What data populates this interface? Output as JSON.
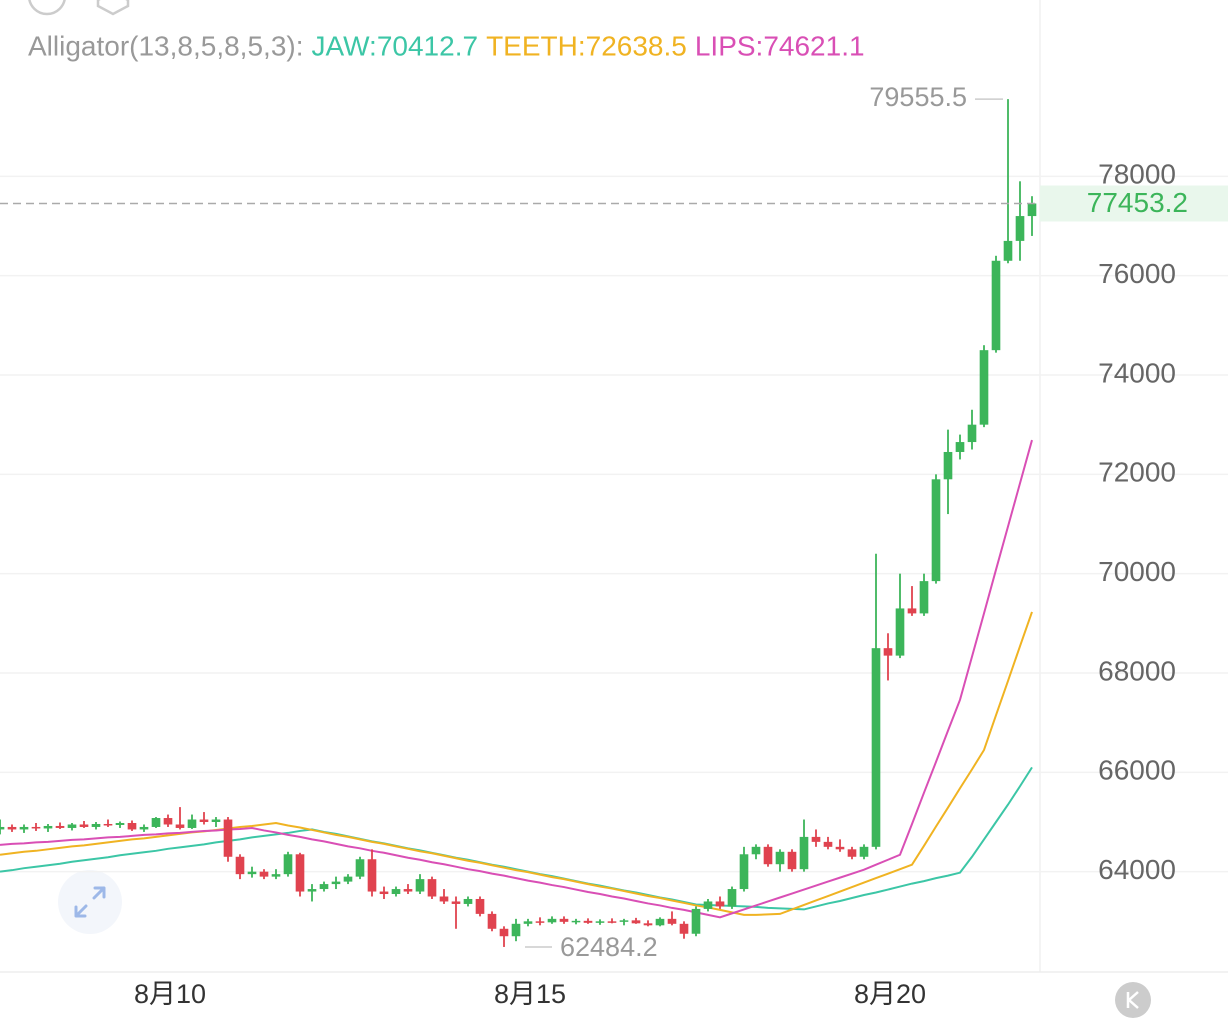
{
  "chart_data": {
    "type": "candlestick",
    "indicator": "Alligator(13,8,5,8,5,3):",
    "categories": [
      null,
      null,
      null,
      null,
      null,
      null,
      null,
      null,
      null,
      null,
      null,
      null,
      null,
      null,
      "8月10",
      null,
      null,
      null,
      null,
      null,
      null,
      null,
      null,
      null,
      null,
      null,
      null,
      null,
      null,
      null,
      null,
      null,
      null,
      null,
      null,
      null,
      null,
      null,
      null,
      null,
      null,
      null,
      null,
      null,
      "8月15",
      null,
      null,
      null,
      null,
      null,
      null,
      null,
      null,
      null,
      null,
      null,
      null,
      null,
      null,
      null,
      null,
      null,
      null,
      null,
      null,
      null,
      null,
      null,
      null,
      null,
      null,
      null,
      null,
      null,
      "8月20",
      null,
      null,
      null,
      null,
      null,
      null,
      null,
      null,
      null,
      null,
      null,
      null
    ],
    "ohlc": [
      [
        64850,
        65050,
        64750,
        64900
      ],
      [
        64900,
        64950,
        64800,
        64850
      ],
      [
        64850,
        64950,
        64780,
        64900
      ],
      [
        64900,
        64980,
        64820,
        64870
      ],
      [
        64870,
        64960,
        64800,
        64920
      ],
      [
        64920,
        64990,
        64860,
        64880
      ],
      [
        64880,
        64980,
        64830,
        64950
      ],
      [
        64950,
        65020,
        64880,
        64900
      ],
      [
        64900,
        65000,
        64850,
        64960
      ],
      [
        64960,
        65050,
        64900,
        64940
      ],
      [
        64940,
        65010,
        64880,
        64980
      ],
      [
        64980,
        65030,
        64820,
        64850
      ],
      [
        64850,
        64950,
        64800,
        64900
      ],
      [
        64900,
        65100,
        64880,
        65080
      ],
      [
        65080,
        65150,
        64900,
        64950
      ],
      [
        64950,
        65300,
        64850,
        64880
      ],
      [
        64880,
        65150,
        64860,
        65050
      ],
      [
        65050,
        65200,
        64950,
        65000
      ],
      [
        65000,
        65100,
        64900,
        65050
      ],
      [
        65050,
        65100,
        64200,
        64300
      ],
      [
        64300,
        64350,
        63850,
        63950
      ],
      [
        63950,
        64100,
        63880,
        64000
      ],
      [
        64000,
        64050,
        63850,
        63900
      ],
      [
        63900,
        64050,
        63850,
        63950
      ],
      [
        63950,
        64400,
        63900,
        64350
      ],
      [
        64350,
        64380,
        63500,
        63600
      ],
      [
        63600,
        63750,
        63400,
        63650
      ],
      [
        63650,
        63800,
        63600,
        63750
      ],
      [
        63750,
        63900,
        63650,
        63800
      ],
      [
        63800,
        63950,
        63750,
        63900
      ],
      [
        63900,
        64300,
        63850,
        64250
      ],
      [
        64250,
        64450,
        63500,
        63600
      ],
      [
        63600,
        63700,
        63450,
        63550
      ],
      [
        63550,
        63700,
        63500,
        63650
      ],
      [
        63650,
        63750,
        63550,
        63600
      ],
      [
        63600,
        63950,
        63550,
        63850
      ],
      [
        63850,
        63900,
        63450,
        63500
      ],
      [
        63500,
        63650,
        63350,
        63400
      ],
      [
        63400,
        63500,
        62850,
        63350
      ],
      [
        63350,
        63500,
        63300,
        63450
      ],
      [
        63450,
        63500,
        63100,
        63150
      ],
      [
        63150,
        63200,
        62800,
        62850
      ],
      [
        62850,
        62900,
        62484.2,
        62700
      ],
      [
        62700,
        63050,
        62600,
        62950
      ],
      [
        62950,
        63050,
        62900,
        63000
      ],
      [
        63000,
        63080,
        62920,
        62980
      ],
      [
        62980,
        63100,
        62950,
        63050
      ],
      [
        63050,
        63100,
        62950,
        62990
      ],
      [
        62990,
        63050,
        62940,
        63010
      ],
      [
        63010,
        63060,
        62950,
        62970
      ],
      [
        62970,
        63040,
        62930,
        63000
      ],
      [
        63000,
        63060,
        62960,
        62990
      ],
      [
        62990,
        63050,
        62920,
        63020
      ],
      [
        63020,
        63070,
        62950,
        62960
      ],
      [
        62960,
        63020,
        62900,
        62920
      ],
      [
        62920,
        63080,
        62900,
        63050
      ],
      [
        63050,
        63200,
        62920,
        62950
      ],
      [
        62950,
        63000,
        62650,
        62750
      ],
      [
        62750,
        63300,
        62700,
        63250
      ],
      [
        63250,
        63450,
        63200,
        63400
      ],
      [
        63400,
        63500,
        63250,
        63300
      ],
      [
        63300,
        63700,
        63250,
        63650
      ],
      [
        63650,
        64500,
        63600,
        64350
      ],
      [
        64350,
        64550,
        64250,
        64500
      ],
      [
        64500,
        64550,
        64100,
        64150
      ],
      [
        64150,
        64450,
        64000,
        64400
      ],
      [
        64400,
        64450,
        64000,
        64050
      ],
      [
        64050,
        65050,
        64000,
        64700
      ],
      [
        64700,
        64850,
        64500,
        64600
      ],
      [
        64600,
        64700,
        64450,
        64500
      ],
      [
        64500,
        64650,
        64400,
        64450
      ],
      [
        64450,
        64500,
        64250,
        64300
      ],
      [
        64300,
        64550,
        64250,
        64500
      ],
      [
        64500,
        70400,
        64450,
        68500
      ],
      [
        68500,
        68800,
        67850,
        68350
      ],
      [
        68350,
        70000,
        68300,
        69300
      ],
      [
        69300,
        69750,
        69150,
        69200
      ],
      [
        69200,
        70000,
        69150,
        69850
      ],
      [
        69850,
        72000,
        69800,
        71900
      ],
      [
        71900,
        72900,
        71200,
        72450
      ],
      [
        72450,
        72800,
        72300,
        72650
      ],
      [
        72650,
        73300,
        72500,
        73000
      ],
      [
        73000,
        74600,
        72950,
        74500
      ],
      [
        74500,
        76400,
        74450,
        76300
      ],
      [
        76300,
        79555.5,
        76250,
        76700
      ],
      [
        76700,
        77900,
        76300,
        77200
      ],
      [
        77200,
        77600,
        76800,
        77453.2
      ]
    ],
    "up_color": "#3cb55a",
    "down_color": "#e0434f",
    "series": [
      {
        "name": "JAW:70412.7",
        "color": "#3cc6a6",
        "values": [
          64000,
          64030,
          64070,
          64100,
          64130,
          64160,
          64200,
          64230,
          64260,
          64290,
          64330,
          64360,
          64390,
          64420,
          64460,
          64490,
          64520,
          64550,
          64590,
          64620,
          64650,
          64690,
          64720,
          64750,
          64780,
          64820,
          64850,
          64800,
          64760,
          64710,
          64660,
          64610,
          64570,
          64520,
          64470,
          64430,
          64380,
          64330,
          64280,
          64240,
          64190,
          64140,
          64100,
          64050,
          64000,
          63950,
          63910,
          63860,
          63810,
          63760,
          63720,
          63670,
          63620,
          63580,
          63530,
          63480,
          63440,
          63390,
          63340,
          63330,
          63320,
          63310,
          63300,
          63290,
          63270,
          63260,
          63250,
          63240,
          63300,
          63360,
          63410,
          63470,
          63530,
          63580,
          63640,
          63700,
          63760,
          63810,
          63870,
          63920,
          63980,
          64300,
          64650,
          65000,
          65350,
          65720,
          66100
        ]
      },
      {
        "name": "TEETH:72638.5",
        "color": "#f0b322",
        "values": [
          64340,
          64370,
          64400,
          64420,
          64450,
          64480,
          64510,
          64530,
          64560,
          64590,
          64620,
          64650,
          64670,
          64700,
          64730,
          64760,
          64790,
          64810,
          64840,
          64870,
          64900,
          64920,
          64950,
          64980,
          64930,
          64890,
          64840,
          64790,
          64740,
          64700,
          64650,
          64600,
          64560,
          64510,
          64460,
          64410,
          64370,
          64320,
          64270,
          64220,
          64180,
          64130,
          64080,
          64030,
          63990,
          63940,
          63890,
          63850,
          63800,
          63750,
          63700,
          63660,
          63610,
          63560,
          63510,
          63470,
          63420,
          63370,
          63320,
          63280,
          63230,
          63180,
          63130,
          63130,
          63140,
          63150,
          63240,
          63330,
          63420,
          63510,
          63600,
          63690,
          63780,
          63870,
          63960,
          64050,
          64140,
          64520,
          64910,
          65290,
          65680,
          66060,
          66450,
          67150,
          67840,
          68540,
          69230
        ]
      },
      {
        "name": "LIPS:74621.1",
        "color": "#d94fb5",
        "values": [
          64540,
          64560,
          64570,
          64590,
          64600,
          64620,
          64640,
          64650,
          64670,
          64690,
          64700,
          64720,
          64740,
          64750,
          64770,
          64780,
          64800,
          64820,
          64830,
          64850,
          64860,
          64880,
          64830,
          64790,
          64740,
          64700,
          64650,
          64610,
          64560,
          64510,
          64470,
          64420,
          64380,
          64330,
          64280,
          64240,
          64190,
          64150,
          64100,
          64050,
          64010,
          63960,
          63920,
          63870,
          63820,
          63780,
          63730,
          63690,
          63640,
          63590,
          63550,
          63500,
          63460,
          63410,
          63360,
          63320,
          63270,
          63230,
          63180,
          63130,
          63080,
          63160,
          63240,
          63320,
          63400,
          63480,
          63560,
          63640,
          63720,
          63800,
          63880,
          63960,
          64040,
          64140,
          64240,
          64340,
          64960,
          65590,
          66210,
          66840,
          67460,
          68330,
          69200,
          70080,
          70950,
          71820,
          72690
        ]
      }
    ],
    "ylim": [
      62000,
      80000
    ],
    "yticks": [
      64000,
      66000,
      68000,
      70000,
      72000,
      74000,
      76000,
      78000
    ],
    "grid": true
  }
}
